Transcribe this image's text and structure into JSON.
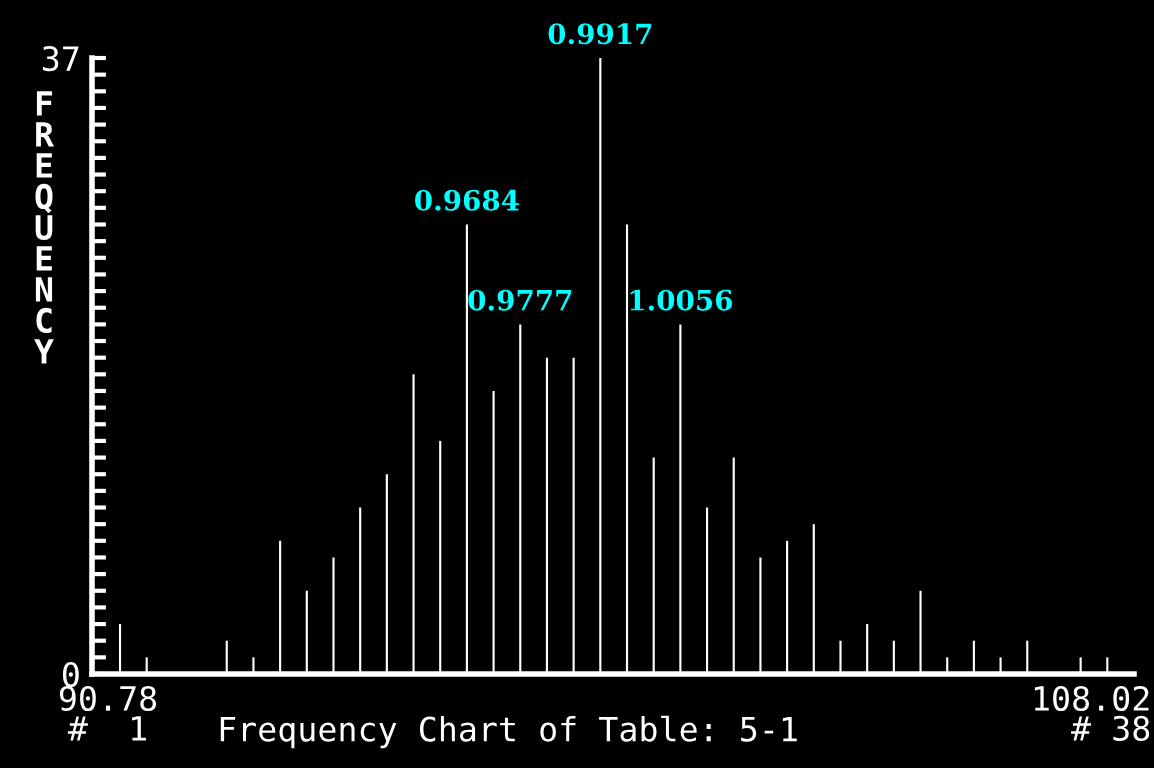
{
  "chart_data": {
    "type": "bar",
    "title": "Frequency Chart of Table: 5-1",
    "ylabel": "FREQUENCY",
    "categories": [
      "90.78\n#  1",
      null,
      null,
      null,
      null,
      null,
      null,
      null,
      null,
      null,
      null,
      null,
      null,
      null,
      null,
      null,
      null,
      null,
      null,
      null,
      null,
      null,
      null,
      null,
      null,
      null,
      null,
      null,
      null,
      null,
      null,
      null,
      null,
      null,
      null,
      null,
      null,
      "108.02\n# 38"
    ],
    "values": [
      3,
      1,
      0,
      0,
      2,
      1,
      8,
      5,
      7,
      10,
      12,
      18,
      14,
      27,
      17,
      21,
      19,
      19,
      37,
      27,
      13,
      21,
      10,
      13,
      7,
      8,
      9,
      2,
      3,
      2,
      5,
      1,
      2,
      1,
      2,
      0,
      1,
      1
    ],
    "color": "#ffffff",
    "annotations": [
      {
        "text": "0.9684",
        "y": 27
      },
      {
        "text": "0.9777",
        "y": 21
      },
      {
        "text": "0.9917",
        "y": 37
      },
      {
        "text": "1.0056",
        "y": 21
      }
    ],
    "ylim": [
      0,
      37
    ],
    "yticks": [
      0,
      {
        "value": 1,
        "label": null
      },
      {
        "value": 2,
        "label": null
      },
      {
        "value": 3,
        "label": null
      },
      {
        "value": 4,
        "label": null
      },
      {
        "value": 5,
        "label": null
      },
      {
        "value": 6,
        "label": null
      },
      {
        "value": 7,
        "label": null
      },
      {
        "value": 8,
        "label": null
      },
      {
        "value": 9,
        "label": null
      },
      {
        "value": 10,
        "label": null
      },
      {
        "value": 11,
        "label": null
      },
      {
        "value": 12,
        "label": null
      },
      {
        "value": 13,
        "label": null
      },
      {
        "value": 14,
        "label": null
      },
      {
        "value": 15,
        "label": null
      },
      {
        "value": 16,
        "label": null
      },
      {
        "value": 17,
        "label": null
      },
      {
        "value": 18,
        "label": null
      },
      {
        "value": 19,
        "label": null
      },
      {
        "value": 20,
        "label": null
      },
      {
        "value": 21,
        "label": null
      },
      {
        "value": 22,
        "label": null
      },
      {
        "value": 23,
        "label": null
      },
      {
        "value": 24,
        "label": null
      },
      {
        "value": 25,
        "label": null
      },
      {
        "value": 26,
        "label": null
      },
      {
        "value": 27,
        "label": null
      },
      {
        "value": 28,
        "label": null
      },
      {
        "value": 29,
        "label": null
      },
      {
        "value": 30,
        "label": null
      },
      {
        "value": 31,
        "label": null
      },
      {
        "value": 32,
        "label": null
      },
      {
        "value": 33,
        "label": null
      },
      {
        "value": 34,
        "label": null
      },
      {
        "value": 35,
        "label": null
      },
      {
        "value": 36,
        "label": null
      },
      37
    ],
    "grid": false,
    "legend": false
  }
}
